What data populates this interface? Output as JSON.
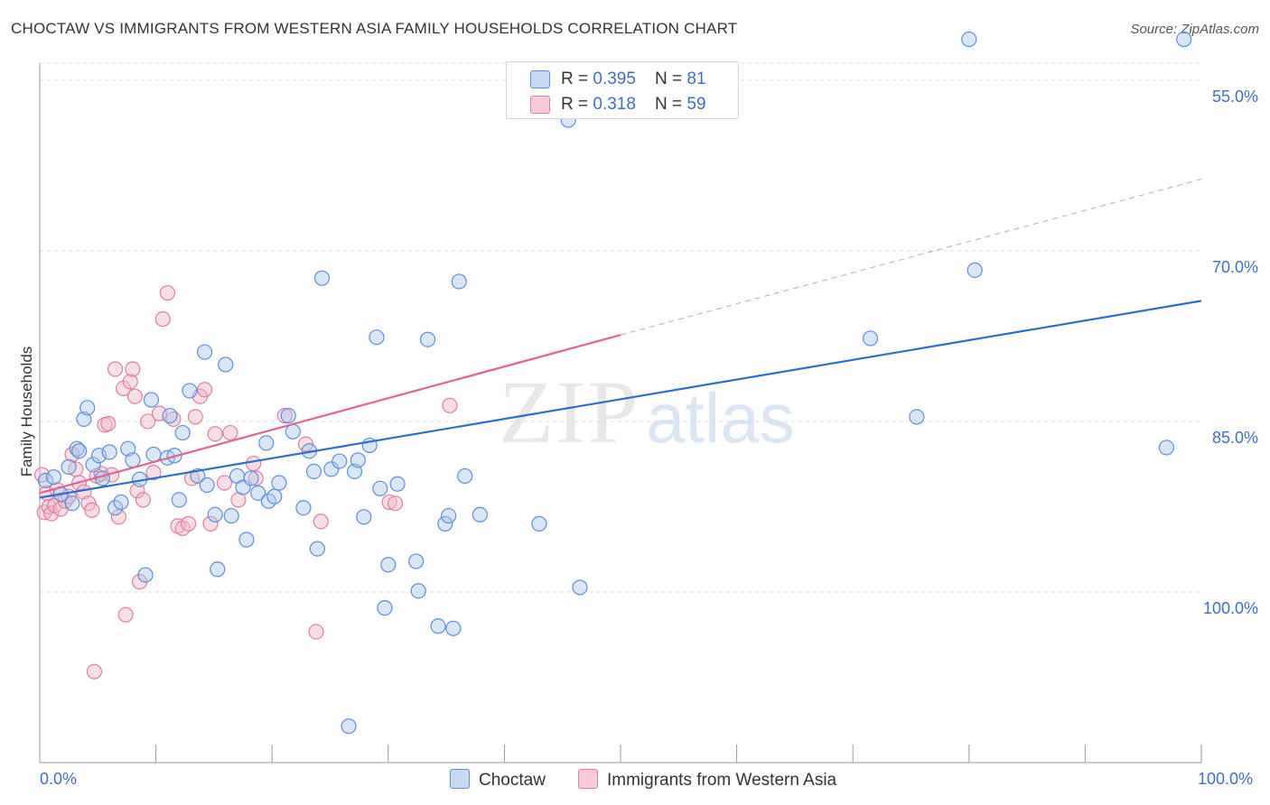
{
  "header": {
    "title": "CHOCTAW VS IMMIGRANTS FROM WESTERN ASIA FAMILY HOUSEHOLDS CORRELATION CHART",
    "source": "Source: ZipAtlas.com"
  },
  "watermark": {
    "zip": "ZIP",
    "atlas": "atlas"
  },
  "colors": {
    "choctaw_fill": "#aac7f0",
    "choctaw_stroke": "#5b8fd9",
    "choctaw_line": "#2a6fd0",
    "wa_fill": "#f5b5c8",
    "wa_stroke": "#e07e9c",
    "wa_line": "#e0658e",
    "grid": "#dddddd",
    "axis_text": "#3d6fc7"
  },
  "legend": {
    "rows": [
      {
        "r_label": "R = ",
        "r_value": "0.395",
        "n_label": "N = ",
        "n_value": "81"
      },
      {
        "r_label": "R = ",
        "r_value": "0.318",
        "n_label": "N = ",
        "n_value": "59"
      }
    ]
  },
  "bottom_legend": {
    "choctaw": "Choctaw",
    "wa": "Immigrants from Western Asia"
  },
  "axes": {
    "x_min_label": "0.0%",
    "x_max_label": "100.0%",
    "y_ticks": [
      "100.0%",
      "85.0%",
      "70.0%",
      "55.0%"
    ],
    "ylabel": "Family Households"
  },
  "chart_data": {
    "type": "scatter",
    "title": "CHOCTAW VS IMMIGRANTS FROM WESTERN ASIA FAMILY HOUSEHOLDS CORRELATION CHART",
    "xlabel": "",
    "ylabel": "Family Households",
    "xlim": [
      0,
      100
    ],
    "ylim": [
      40,
      101.5
    ],
    "y_ticks": [
      55,
      70,
      85,
      100
    ],
    "grid": true,
    "legend_placement": "top-center",
    "series": [
      {
        "name": "Choctaw",
        "r": 0.395,
        "n": 81,
        "trend": {
          "x0": 0,
          "y0": 63.3,
          "x1": 100,
          "y1": 80.6,
          "style": "solid"
        },
        "points": [
          [
            0.5,
            64.8
          ],
          [
            1.2,
            65.1
          ],
          [
            1.8,
            63.6
          ],
          [
            2.5,
            66.0
          ],
          [
            2.8,
            62.8
          ],
          [
            3.2,
            67.6
          ],
          [
            3.4,
            67.4
          ],
          [
            3.8,
            70.2
          ],
          [
            4.1,
            71.2
          ],
          [
            4.6,
            66.2
          ],
          [
            5.1,
            67.0
          ],
          [
            5.4,
            65.0
          ],
          [
            6.0,
            67.3
          ],
          [
            6.5,
            62.4
          ],
          [
            7.0,
            62.9
          ],
          [
            7.6,
            67.6
          ],
          [
            8.0,
            66.6
          ],
          [
            8.6,
            64.9
          ],
          [
            9.1,
            56.5
          ],
          [
            9.6,
            71.9
          ],
          [
            9.8,
            67.1
          ],
          [
            11.0,
            66.8
          ],
          [
            11.2,
            70.5
          ],
          [
            11.6,
            67.0
          ],
          [
            12.0,
            63.1
          ],
          [
            12.3,
            69.0
          ],
          [
            12.9,
            72.7
          ],
          [
            13.6,
            65.2
          ],
          [
            14.2,
            76.1
          ],
          [
            14.4,
            64.4
          ],
          [
            15.1,
            61.8
          ],
          [
            15.3,
            57.0
          ],
          [
            16.0,
            75.0
          ],
          [
            16.5,
            61.7
          ],
          [
            17.0,
            65.2
          ],
          [
            17.5,
            64.2
          ],
          [
            17.8,
            59.6
          ],
          [
            18.2,
            65.0
          ],
          [
            18.8,
            63.7
          ],
          [
            19.5,
            68.1
          ],
          [
            19.7,
            63.0
          ],
          [
            20.2,
            63.4
          ],
          [
            20.6,
            64.6
          ],
          [
            21.4,
            70.5
          ],
          [
            21.8,
            69.1
          ],
          [
            22.7,
            62.4
          ],
          [
            23.2,
            67.4
          ],
          [
            23.6,
            65.6
          ],
          [
            23.9,
            58.8
          ],
          [
            24.3,
            82.6
          ],
          [
            25.1,
            65.8
          ],
          [
            25.8,
            66.5
          ],
          [
            26.6,
            43.2
          ],
          [
            27.1,
            65.6
          ],
          [
            27.4,
            66.6
          ],
          [
            27.9,
            61.6
          ],
          [
            28.4,
            67.9
          ],
          [
            29.0,
            77.4
          ],
          [
            29.3,
            64.1
          ],
          [
            29.7,
            53.6
          ],
          [
            30.0,
            57.4
          ],
          [
            30.8,
            64.5
          ],
          [
            32.4,
            57.7
          ],
          [
            32.6,
            55.1
          ],
          [
            33.4,
            77.2
          ],
          [
            34.3,
            52.0
          ],
          [
            34.9,
            61.0
          ],
          [
            35.2,
            61.7
          ],
          [
            35.6,
            51.8
          ],
          [
            36.1,
            82.3
          ],
          [
            36.6,
            65.2
          ],
          [
            37.9,
            61.8
          ],
          [
            43.0,
            61.0
          ],
          [
            45.5,
            96.5
          ],
          [
            46.5,
            55.4
          ],
          [
            71.5,
            77.3
          ],
          [
            75.5,
            70.4
          ],
          [
            80.0,
            103.6
          ],
          [
            80.5,
            83.3
          ],
          [
            97.0,
            67.7
          ],
          [
            98.5,
            103.6
          ]
        ]
      },
      {
        "name": "Immigrants from Western Asia",
        "r": 0.318,
        "n": 59,
        "trend": {
          "x0": 0,
          "y0": 63.7,
          "x1": 50,
          "y1": 77.6,
          "style": "solid",
          "ext_x1": 100,
          "ext_y1": 91.3,
          "ext_style": "dashed"
        },
        "points": [
          [
            0.2,
            65.3
          ],
          [
            0.4,
            62.0
          ],
          [
            0.6,
            63.7
          ],
          [
            0.8,
            62.5
          ],
          [
            1.0,
            61.9
          ],
          [
            1.3,
            62.6
          ],
          [
            1.5,
            64.0
          ],
          [
            1.8,
            62.3
          ],
          [
            2.2,
            63.0
          ],
          [
            2.5,
            63.4
          ],
          [
            2.8,
            67.1
          ],
          [
            3.1,
            65.8
          ],
          [
            3.4,
            64.6
          ],
          [
            3.8,
            63.8
          ],
          [
            4.2,
            62.8
          ],
          [
            4.5,
            62.2
          ],
          [
            4.7,
            48.0
          ],
          [
            4.9,
            65.2
          ],
          [
            5.3,
            65.4
          ],
          [
            5.6,
            69.7
          ],
          [
            5.9,
            69.8
          ],
          [
            6.2,
            65.3
          ],
          [
            6.5,
            74.6
          ],
          [
            6.8,
            61.6
          ],
          [
            7.2,
            72.9
          ],
          [
            7.4,
            53.0
          ],
          [
            7.8,
            73.5
          ],
          [
            8.0,
            74.6
          ],
          [
            8.2,
            72.2
          ],
          [
            8.4,
            63.9
          ],
          [
            8.6,
            55.9
          ],
          [
            8.9,
            63.1
          ],
          [
            9.3,
            70.0
          ],
          [
            9.8,
            65.5
          ],
          [
            10.3,
            70.7
          ],
          [
            10.6,
            79.0
          ],
          [
            11.0,
            81.3
          ],
          [
            11.5,
            70.2
          ],
          [
            11.9,
            60.8
          ],
          [
            12.3,
            60.6
          ],
          [
            12.8,
            61.0
          ],
          [
            13.1,
            65.0
          ],
          [
            13.4,
            70.4
          ],
          [
            13.8,
            72.2
          ],
          [
            14.2,
            72.8
          ],
          [
            14.7,
            61.0
          ],
          [
            15.1,
            68.9
          ],
          [
            15.9,
            64.6
          ],
          [
            16.4,
            69.0
          ],
          [
            17.1,
            63.1
          ],
          [
            18.4,
            66.3
          ],
          [
            18.6,
            65.0
          ],
          [
            21.1,
            70.5
          ],
          [
            22.9,
            68.0
          ],
          [
            23.8,
            51.5
          ],
          [
            24.2,
            61.2
          ],
          [
            30.1,
            62.9
          ],
          [
            30.6,
            62.8
          ],
          [
            35.3,
            71.4
          ]
        ]
      }
    ]
  }
}
